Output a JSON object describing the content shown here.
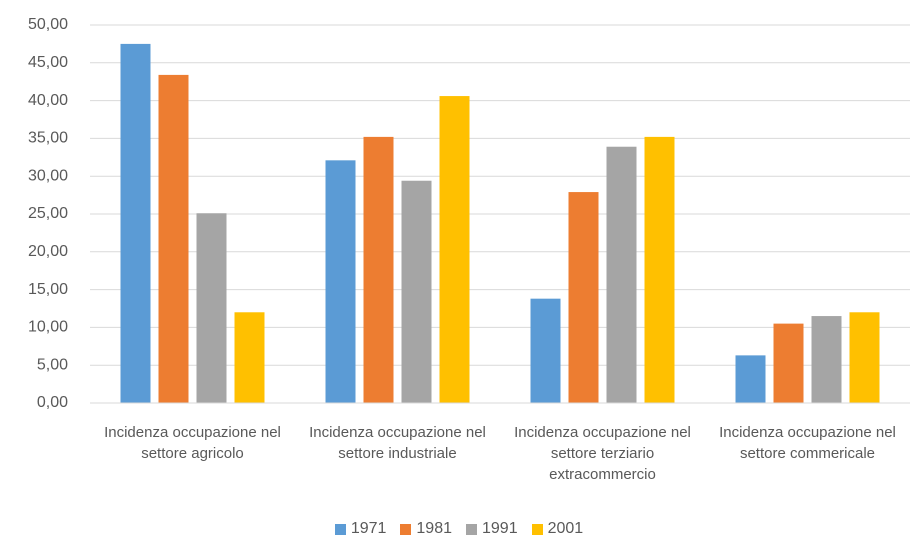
{
  "chart_data": {
    "type": "bar",
    "categories": [
      "Incidenza occupazione nel settore agricolo",
      "Incidenza occupazione nel settore industriale",
      "Incidenza occupazione nel settore terziario extracommercio",
      "Incidenza occupazione nel settore commericale"
    ],
    "series": [
      {
        "name": "1971",
        "color": "#5b9bd5",
        "values": [
          47.5,
          32.1,
          13.8,
          6.3
        ]
      },
      {
        "name": "1981",
        "color": "#ed7d31",
        "values": [
          43.4,
          35.2,
          27.9,
          10.5
        ]
      },
      {
        "name": "1991",
        "color": "#a5a5a5",
        "values": [
          25.1,
          29.4,
          33.9,
          11.5
        ]
      },
      {
        "name": "2001",
        "color": "#ffc000",
        "values": [
          12.0,
          40.6,
          35.2,
          12.0
        ]
      }
    ],
    "ylim": [
      0,
      50
    ],
    "yticks": [
      {
        "value": 0,
        "label": "0,00"
      },
      {
        "value": 5,
        "label": "5,00"
      },
      {
        "value": 10,
        "label": "10,00"
      },
      {
        "value": 15,
        "label": "15,00"
      },
      {
        "value": 20,
        "label": "20,00"
      },
      {
        "value": 25,
        "label": "25,00"
      },
      {
        "value": 30,
        "label": "30,00"
      },
      {
        "value": 35,
        "label": "35,00"
      },
      {
        "value": 40,
        "label": "40,00"
      },
      {
        "value": 45,
        "label": "45,00"
      },
      {
        "value": 50,
        "label": "50,00"
      }
    ],
    "grid": true,
    "legend": "bottom"
  }
}
